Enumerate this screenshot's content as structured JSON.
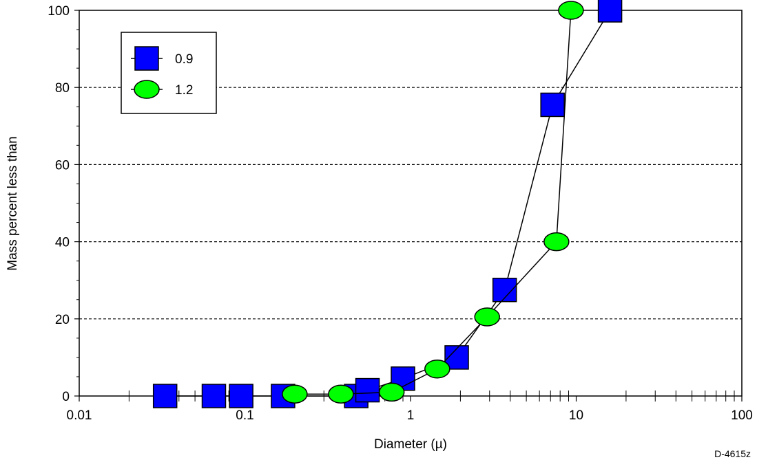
{
  "chart_data": {
    "type": "scatter",
    "xlabel": "Diameter (µ)",
    "ylabel": "Mass percent less than",
    "xscale": "log",
    "xlim": [
      0.01,
      100
    ],
    "ylim": [
      0,
      100
    ],
    "grid": "horizontal dashed",
    "legend_position": "top-left",
    "x_tick_labels": [
      "0.01",
      "0.1",
      "1",
      "10",
      "100"
    ],
    "y_tick_labels": [
      "0",
      "20",
      "40",
      "60",
      "80",
      "100"
    ],
    "annotation": "D-4615z",
    "series": [
      {
        "name": "0.9",
        "marker": "square",
        "color": "#0000ff",
        "x": [
          0.033,
          0.065,
          0.095,
          0.17,
          0.47,
          0.55,
          0.9,
          1.9,
          3.7,
          7.2,
          16
        ],
        "y": [
          0,
          0,
          0,
          0,
          0,
          1.5,
          4.5,
          10,
          27.5,
          75.5,
          100
        ]
      },
      {
        "name": "1.2",
        "marker": "circle",
        "color": "#00ff00",
        "x": [
          0.2,
          0.38,
          0.77,
          1.45,
          2.9,
          7.6,
          9.3
        ],
        "y": [
          0.5,
          0.5,
          1,
          7,
          20.5,
          40,
          100
        ]
      }
    ]
  }
}
